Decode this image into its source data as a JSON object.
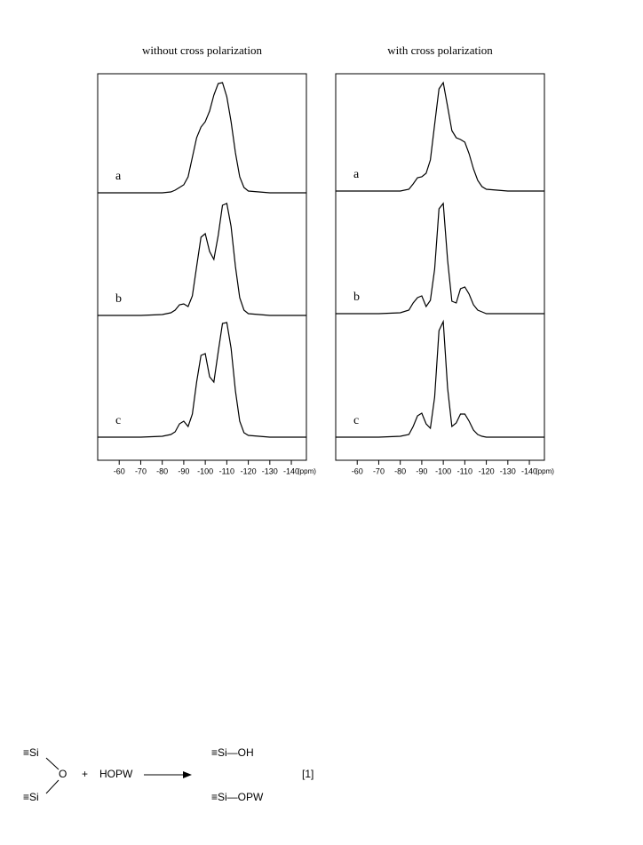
{
  "chart_data": [
    {
      "type": "line",
      "title": "without cross polarization",
      "xlabel": "(ppm)",
      "x": [
        -50,
        -60,
        -70,
        -80,
        -84,
        -86,
        -88,
        -90,
        -92,
        -94,
        -96,
        -98,
        -100,
        -102,
        -104,
        -106,
        -108,
        -110,
        -112,
        -114,
        -116,
        -118,
        -120,
        -130,
        -140,
        -147
      ],
      "xlim": [
        -50,
        -147
      ],
      "xticks": [
        -60,
        -70,
        -80,
        -90,
        -100,
        -110,
        -120,
        -130,
        -140
      ],
      "series": [
        {
          "name": "a",
          "color": "#000000",
          "values": [
            0,
            0,
            0,
            0,
            1,
            3,
            6,
            9,
            18,
            40,
            62,
            74,
            80,
            92,
            110,
            123,
            124,
            108,
            80,
            45,
            18,
            6,
            2,
            0,
            0,
            0
          ]
        },
        {
          "name": "b",
          "color": "#000000",
          "values": [
            0,
            0,
            0,
            1,
            3,
            6,
            12,
            13,
            10,
            22,
            55,
            88,
            92,
            72,
            63,
            90,
            124,
            126,
            100,
            55,
            20,
            6,
            2,
            0,
            0,
            0
          ]
        },
        {
          "name": "c",
          "color": "#000000",
          "values": [
            0,
            0,
            0,
            1,
            3,
            6,
            15,
            18,
            12,
            26,
            62,
            92,
            94,
            68,
            62,
            96,
            128,
            129,
            100,
            52,
            18,
            5,
            2,
            0,
            0,
            0
          ]
        }
      ]
    },
    {
      "type": "line",
      "title": "with cross polarization",
      "xlabel": "(ppm)",
      "x": [
        -50,
        -60,
        -70,
        -80,
        -84,
        -86,
        -88,
        -90,
        -92,
        -94,
        -96,
        -98,
        -100,
        -102,
        -104,
        -106,
        -108,
        -110,
        -112,
        -114,
        -116,
        -118,
        -120,
        -130,
        -140,
        -147
      ],
      "xlim": [
        -50,
        -147
      ],
      "xticks": [
        -60,
        -70,
        -80,
        -90,
        -100,
        -110,
        -120,
        -130,
        -140
      ],
      "series": [
        {
          "name": "a",
          "color": "#000000",
          "values": [
            0,
            0,
            0,
            0,
            2,
            8,
            15,
            16,
            20,
            35,
            75,
            115,
            122,
            95,
            68,
            60,
            58,
            55,
            42,
            25,
            12,
            5,
            2,
            0,
            0,
            0
          ]
        },
        {
          "name": "b",
          "color": "#000000",
          "values": [
            0,
            0,
            0,
            1,
            4,
            12,
            18,
            20,
            8,
            15,
            50,
            118,
            124,
            60,
            14,
            12,
            28,
            30,
            22,
            10,
            4,
            2,
            0,
            0,
            0,
            0
          ]
        },
        {
          "name": "c",
          "color": "#000000",
          "values": [
            0,
            0,
            0,
            1,
            3,
            12,
            24,
            27,
            15,
            10,
            45,
            120,
            130,
            55,
            12,
            16,
            26,
            26,
            18,
            8,
            3,
            1,
            0,
            0,
            0,
            0
          ]
        }
      ]
    }
  ],
  "scheme": {
    "si_top": "≡Si",
    "oxygen": "O",
    "si_bottom": "≡Si",
    "plus": "+",
    "reagent": "HOPW",
    "product_top": "≡Si—OH",
    "product_bottom": "≡Si—OPW",
    "number": "[1]"
  }
}
